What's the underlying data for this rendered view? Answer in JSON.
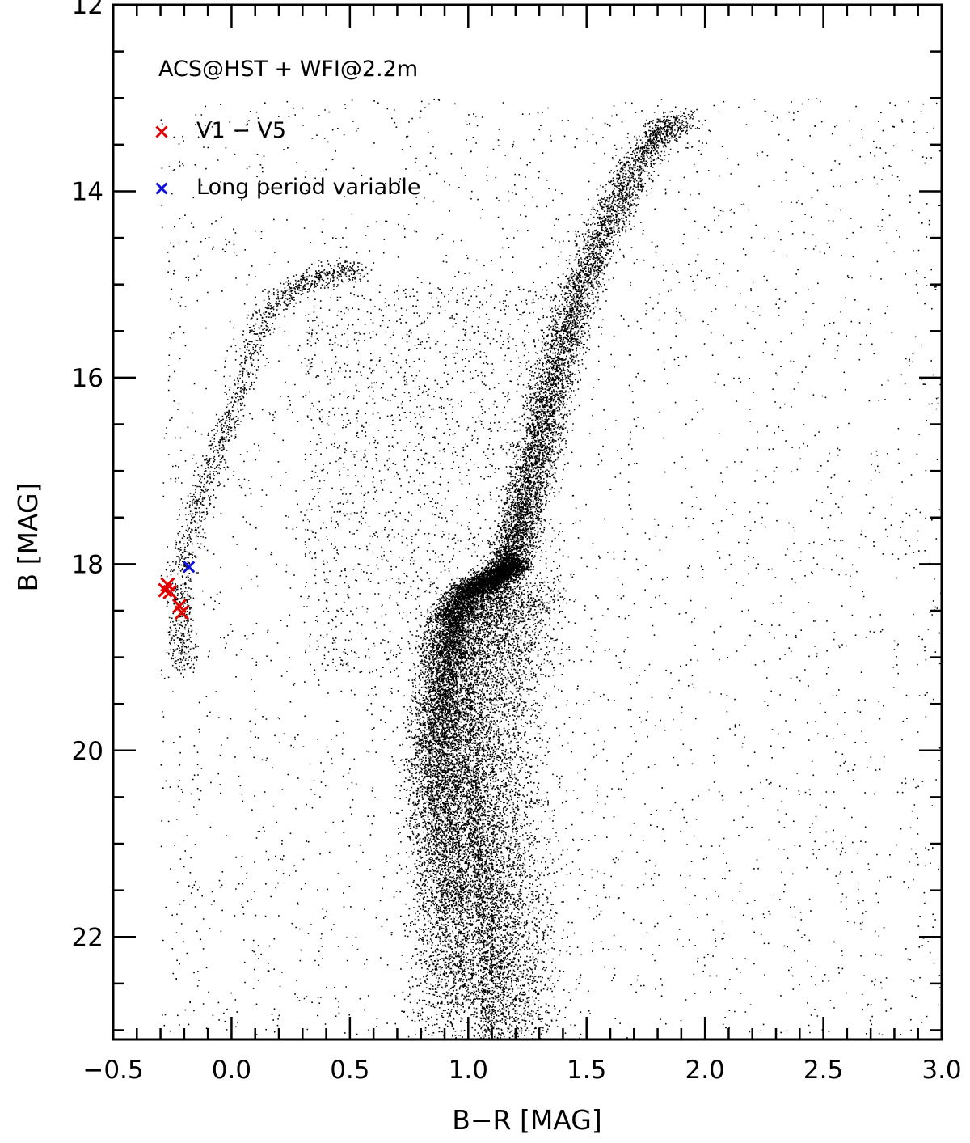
{
  "chart_data": {
    "type": "scatter",
    "title": "",
    "xlabel": "B−R [MAG]",
    "ylabel": "B [MAG]",
    "xlim": [
      -0.5,
      3.0
    ],
    "ylim": [
      23.1,
      12.0
    ],
    "y_inverted": true,
    "x_ticks": [
      -0.5,
      0.0,
      0.5,
      1.0,
      1.5,
      2.0,
      2.5,
      3.0
    ],
    "x_tick_labels": [
      "−0.5",
      "0.0",
      "0.5",
      "1.0",
      "1.5",
      "2.0",
      "2.5",
      "3.0"
    ],
    "x_minor_step": 0.1,
    "y_ticks": [
      12,
      14,
      16,
      18,
      20,
      22
    ],
    "y_tick_labels": [
      "12",
      "14",
      "16",
      "18",
      "20",
      "22"
    ],
    "y_minor_step": 0.5,
    "grid": false,
    "legend_position": "top-left",
    "annotation": "ACS@HST + WFI@2.2m",
    "series": [
      {
        "name": "V1 − V5",
        "color": "#e00000",
        "marker": "x",
        "points": [
          {
            "x": -0.27,
            "y": 18.22
          },
          {
            "x": -0.28,
            "y": 18.28
          },
          {
            "x": -0.26,
            "y": 18.3
          },
          {
            "x": -0.22,
            "y": 18.45
          },
          {
            "x": -0.21,
            "y": 18.52
          }
        ]
      },
      {
        "name": "Long period variable",
        "color": "#1010e0",
        "marker": "x",
        "points": [
          {
            "x": -0.18,
            "y": 18.03
          }
        ]
      }
    ],
    "background_population": {
      "color": "#000000",
      "marker": "dot",
      "features": {
        "main_sequence_and_subgiant_branch": [
          [
            0.93,
            23.1
          ],
          [
            0.93,
            22.5
          ],
          [
            0.92,
            22.0
          ],
          [
            0.91,
            21.5
          ],
          [
            0.89,
            21.0
          ],
          [
            0.87,
            20.5
          ],
          [
            0.86,
            20.0
          ],
          [
            0.87,
            19.5
          ],
          [
            0.89,
            19.0
          ],
          [
            0.91,
            18.6
          ],
          [
            0.97,
            18.3
          ],
          [
            1.07,
            18.15
          ],
          [
            1.17,
            18.0
          ]
        ],
        "red_giant_branch": [
          [
            1.17,
            18.0
          ],
          [
            1.22,
            17.5
          ],
          [
            1.27,
            17.0
          ],
          [
            1.32,
            16.5
          ],
          [
            1.36,
            16.0
          ],
          [
            1.42,
            15.5
          ],
          [
            1.48,
            15.0
          ],
          [
            1.56,
            14.5
          ],
          [
            1.65,
            14.0
          ],
          [
            1.76,
            13.5
          ],
          [
            1.9,
            13.2
          ]
        ],
        "horizontal_branch": [
          [
            -0.2,
            19.1
          ],
          [
            -0.22,
            18.7
          ],
          [
            -0.22,
            18.2
          ],
          [
            -0.18,
            17.7
          ],
          [
            -0.12,
            17.2
          ],
          [
            -0.05,
            16.7
          ],
          [
            0.02,
            16.2
          ],
          [
            0.08,
            15.7
          ],
          [
            0.15,
            15.3
          ],
          [
            0.27,
            15.0
          ],
          [
            0.4,
            14.9
          ],
          [
            0.55,
            14.85
          ]
        ]
      }
    }
  }
}
